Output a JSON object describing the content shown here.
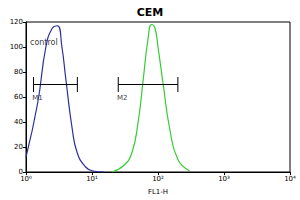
{
  "chart_data": {
    "type": "line",
    "title": "CEM",
    "xlabel": "FL1-H",
    "log": "x",
    "grid": false,
    "xlim": [
      1,
      10000
    ],
    "xticks": [
      {
        "value": 1,
        "label": "10⁰"
      },
      {
        "value": 10,
        "label": "10¹"
      },
      {
        "value": 100,
        "label": "10²"
      },
      {
        "value": 1000,
        "label": "10³"
      },
      {
        "value": 10000,
        "label": "10⁴"
      }
    ],
    "ylim": [
      0,
      120
    ],
    "yticks": [
      0,
      20,
      40,
      60,
      80,
      100,
      120
    ],
    "series": [
      {
        "color": "#2b2f9e",
        "x": [
          1,
          1.5,
          2,
          2.5,
          3,
          3.5,
          4,
          5,
          6,
          8,
          10,
          15
        ],
        "values": [
          12,
          55,
          100,
          115,
          117,
          100,
          75,
          35,
          15,
          4,
          1,
          0
        ]
      },
      {
        "color": "#33cc33",
        "x": [
          20,
          30,
          40,
          50,
          60,
          70,
          80,
          90,
          100,
          120,
          150,
          200,
          300
        ],
        "values": [
          0,
          5,
          15,
          40,
          75,
          105,
          118,
          115,
          100,
          70,
          35,
          10,
          1
        ]
      }
    ],
    "annotations": [
      {
        "text": "control",
        "x": 1.15,
        "y": 104
      }
    ],
    "gates": [
      {
        "label": "M1",
        "x": [
          1.3,
          6
        ],
        "y": 70
      },
      {
        "label": "M2",
        "x": [
          25,
          200
        ],
        "y": 70
      }
    ]
  }
}
